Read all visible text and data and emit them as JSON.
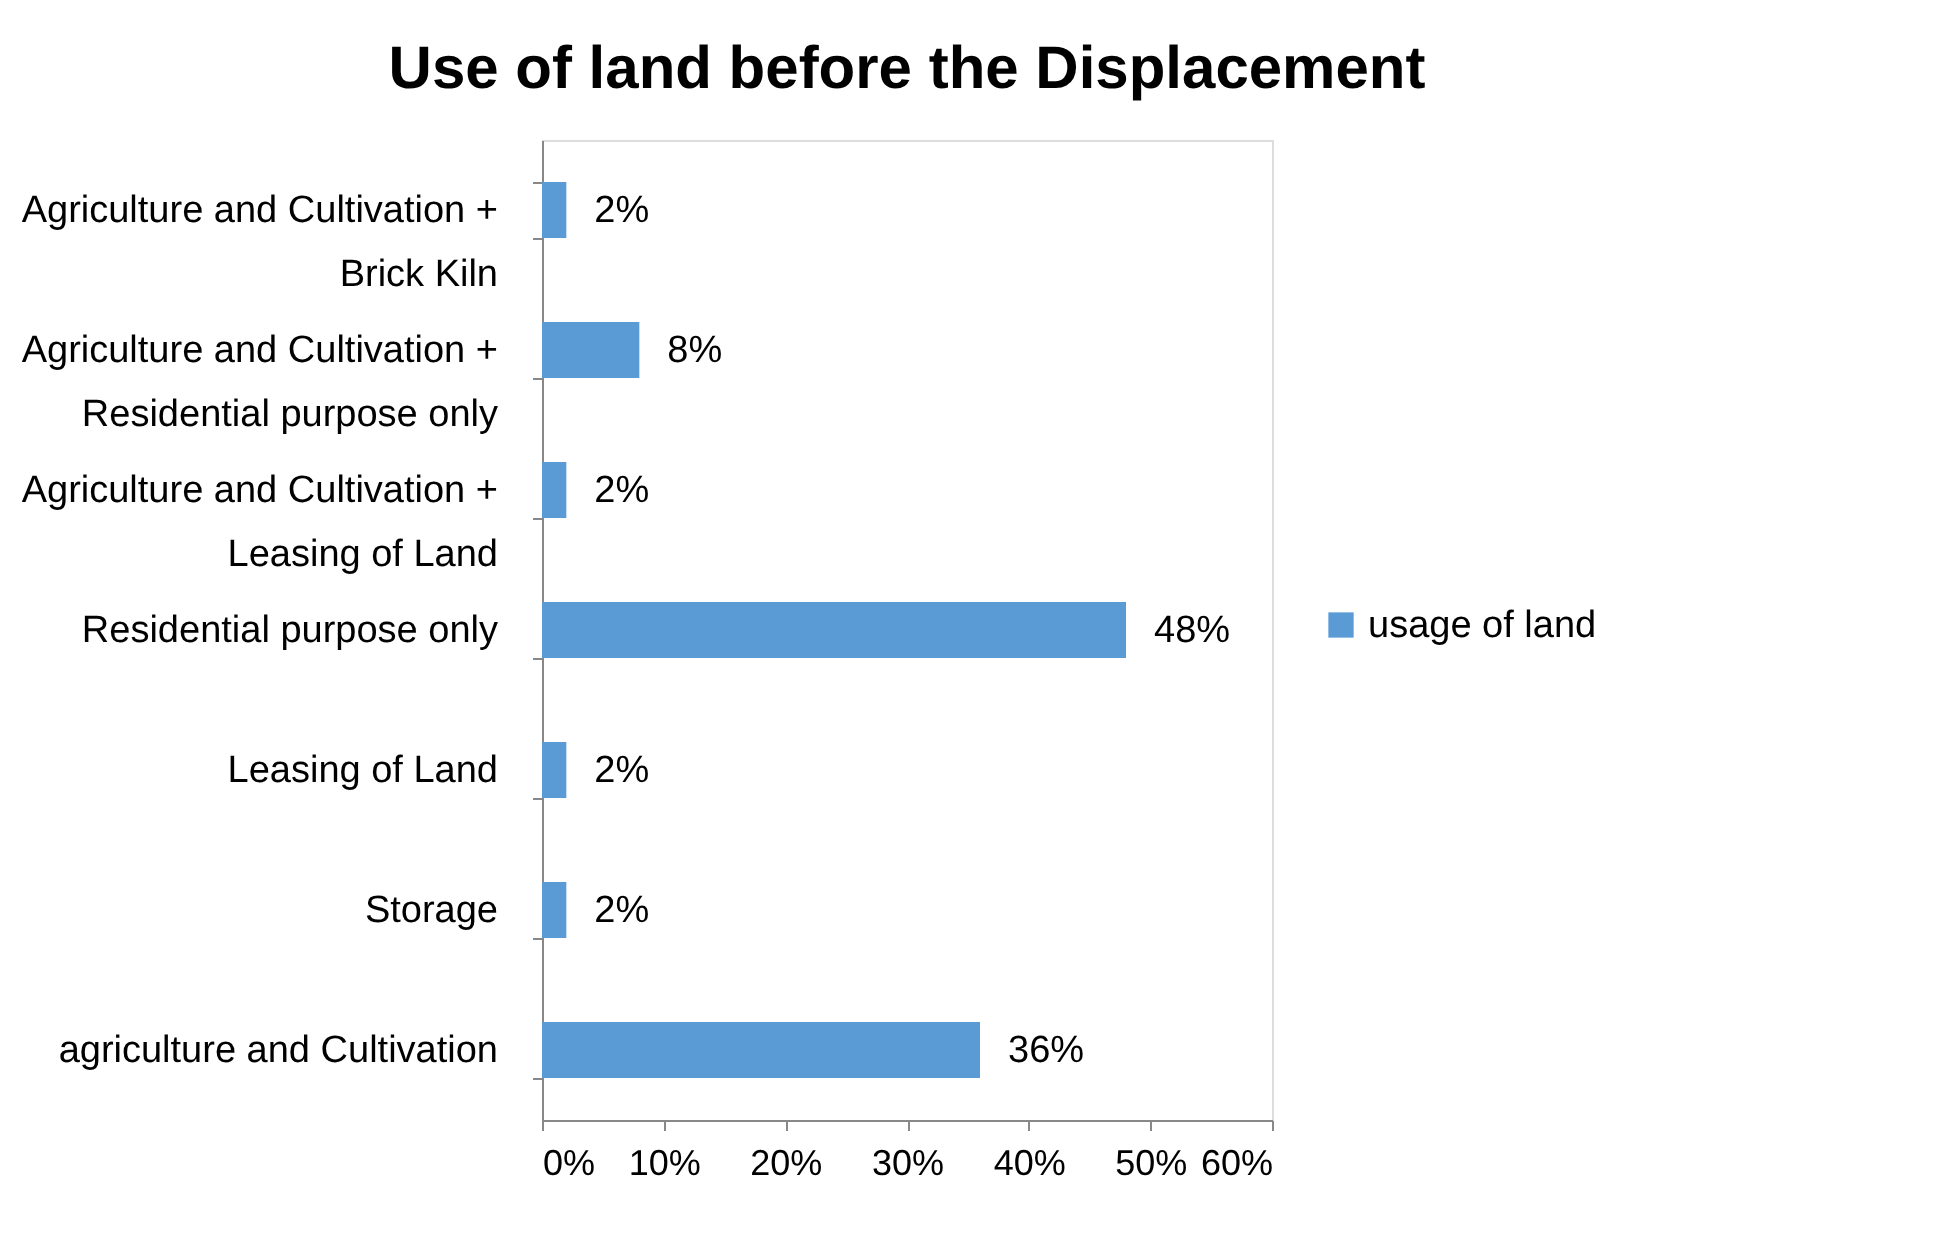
{
  "chart_data": {
    "type": "bar",
    "orientation": "horizontal",
    "title": "Use of land before the Displacement",
    "categories": [
      "Agriculture and Cultivation + Brick Kiln",
      "Agriculture and Cultivation + Residential purpose only",
      "Agriculture and Cultivation + Leasing of Land",
      "Residential purpose only",
      "Leasing of Land",
      "Storage",
      "agriculture and Cultivation"
    ],
    "series": [
      {
        "name": "usage of land",
        "color": "#5b9bd5",
        "values": [
          2,
          8,
          2,
          48,
          2,
          2,
          36
        ],
        "value_labels": [
          "2%",
          "8%",
          "2%",
          "48%",
          "2%",
          "2%",
          "36%"
        ]
      }
    ],
    "xlim": [
      0,
      60
    ],
    "xticks": [
      {
        "value": 0,
        "label": "0%"
      },
      {
        "value": 10,
        "label": "10%"
      },
      {
        "value": 20,
        "label": "20%"
      },
      {
        "value": 30,
        "label": "30%"
      },
      {
        "value": 40,
        "label": "40%"
      },
      {
        "value": 50,
        "label": "50%"
      },
      {
        "value": 60,
        "label": "60%"
      }
    ],
    "grid": false,
    "legend": "right"
  }
}
